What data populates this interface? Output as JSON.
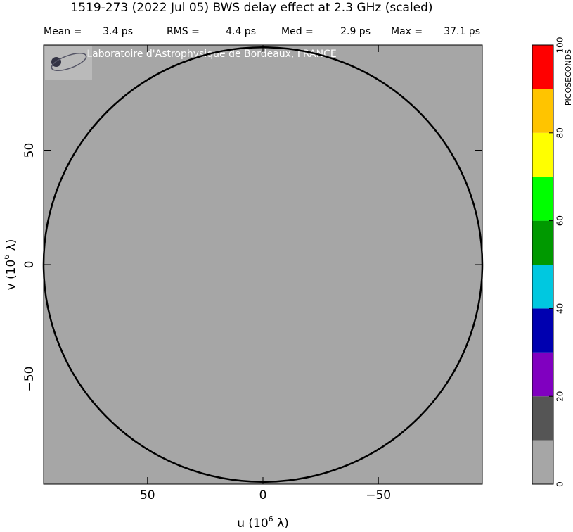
{
  "chart_data": {
    "type": "uv_map",
    "title": "1519-273  (2022 Jul 05)   BWS delay effect at  2.3 GHz (scaled)",
    "stats": [
      {
        "name": "Mean =",
        "value": 3.4,
        "value_label": "3.4 ps"
      },
      {
        "name": "RMS =",
        "value": 4.4,
        "value_label": "4.4 ps"
      },
      {
        "name": "Med =",
        "value": 2.9,
        "value_label": "2.9 ps"
      },
      {
        "name": "Max =",
        "value": 37.1,
        "value_label": "37.1 ps"
      }
    ],
    "watermark": "Laboratoire d'Astrophysique de Bordeaux, FRANCE",
    "xlabel": {
      "text": "u  (10",
      "sup": "6",
      "tail": " λ)"
    },
    "ylabel": {
      "text": "v  (10",
      "sup": "6",
      "tail": " λ)"
    },
    "xlim": [
      95,
      -95
    ],
    "ylim": [
      -96,
      96
    ],
    "xticks": [
      {
        "value": 50,
        "label": "50"
      },
      {
        "value": 0,
        "label": "0"
      },
      {
        "value": -50,
        "label": "−50"
      }
    ],
    "yticks": [
      {
        "value": -50,
        "label": "−50"
      },
      {
        "value": 0,
        "label": "0"
      },
      {
        "value": 50,
        "label": "50"
      }
    ],
    "circle_radius": 95,
    "background_color": "#a6a6a6",
    "colorbar": {
      "label": "PICOSECONDS",
      "bins": [
        0,
        10,
        20,
        30,
        40,
        50,
        60,
        70,
        80,
        90,
        100
      ],
      "colors": [
        "#a6a6a6",
        "#555555",
        "#8000c0",
        "#0000b0",
        "#00c8e0",
        "#009900",
        "#00ff00",
        "#ffff00",
        "#ffc400",
        "#ff0000"
      ],
      "lim": [
        0,
        100
      ],
      "ticks": [
        0,
        20,
        40,
        60,
        80,
        100
      ]
    }
  }
}
